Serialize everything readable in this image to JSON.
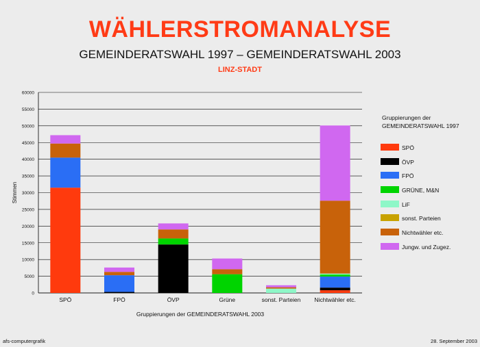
{
  "header": {
    "title": "WÄHLERSTROMANALYSE",
    "subtitle": "GEMEINDERATSWAHL 1997 – GEMEINDERATSWAHL 2003",
    "region": "LINZ-STADT"
  },
  "legend": {
    "title": "Gruppierungen der\nGEMEINDERATSWAHL  1997"
  },
  "footer": {
    "left": "afs-computergrafik",
    "right": "28. September 2003"
  },
  "chart_data": {
    "type": "bar",
    "stacked": true,
    "xlabel": "Gruppierungen der GEMEINDERATSWAHL 2003",
    "ylabel": "Stimmen",
    "ylim": [
      0,
      60000
    ],
    "ytick_step": 5000,
    "grid": true,
    "legend_position": "right",
    "categories": [
      "SPÖ",
      "FPÖ",
      "ÖVP",
      "Grüne",
      "sonst. Parteien",
      "Nichtwähler etc."
    ],
    "series": [
      {
        "name": "SPÖ",
        "color": "#ff3a0d",
        "values": [
          31500,
          0,
          0,
          0,
          0,
          800
        ]
      },
      {
        "name": "ÖVP",
        "color": "#000000",
        "values": [
          0,
          300,
          14500,
          0,
          0,
          800
        ]
      },
      {
        "name": "FPÖ",
        "color": "#2a6ef5",
        "values": [
          9000,
          5000,
          0,
          0,
          0,
          3300
        ]
      },
      {
        "name": "GRÜNE, M&N",
        "color": "#00d400",
        "values": [
          0,
          0,
          1800,
          5600,
          0,
          600
        ]
      },
      {
        "name": "LiF",
        "color": "#8ef7c8",
        "values": [
          0,
          0,
          0,
          0,
          1300,
          300
        ]
      },
      {
        "name": "sonst. Parteien",
        "color": "#c8a200",
        "values": [
          0,
          0,
          0,
          0,
          0,
          0
        ]
      },
      {
        "name": "Nichtwähler etc.",
        "color": "#c8620a",
        "values": [
          4200,
          1000,
          2700,
          1500,
          400,
          21800
        ]
      },
      {
        "name": "Jungw. und Zugez.",
        "color": "#d068f0",
        "values": [
          2500,
          1300,
          1800,
          3200,
          600,
          22500
        ]
      }
    ]
  }
}
